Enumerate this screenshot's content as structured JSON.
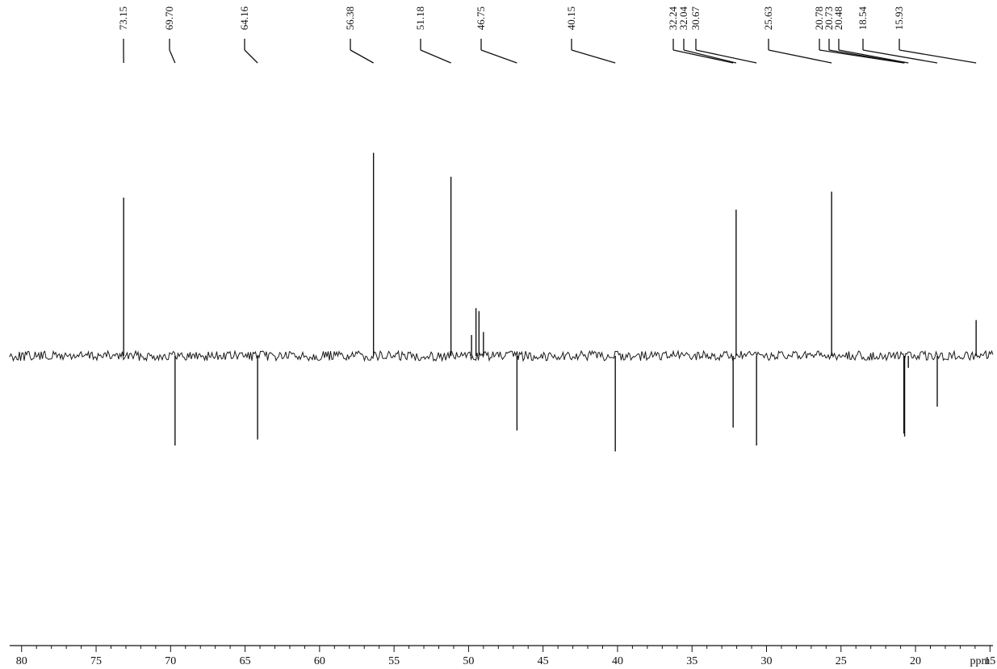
{
  "chart_data": {
    "type": "line",
    "title": "",
    "xlabel": "ppm",
    "ylabel": "",
    "xlim": [
      80.8,
      14.8
    ],
    "x_reversed": true,
    "grid": false,
    "legend": "none",
    "x_ticks": [
      "80",
      "75",
      "70",
      "65",
      "60",
      "55",
      "50",
      "45",
      "40",
      "35",
      "30",
      "25",
      "20",
      "15"
    ],
    "x_unit_label": "ppm",
    "peak_labels": [
      "73.15",
      "69.70",
      "64.16",
      "56.38",
      "51.18",
      "46.75",
      "40.15",
      "32.24",
      "32.04",
      "30.67",
      "25.63",
      "20.78",
      "20.73",
      "20.48",
      "18.54",
      "15.93"
    ],
    "peaks": [
      {
        "ppm": 73.15,
        "intensity": 0.53,
        "phase": "positive"
      },
      {
        "ppm": 69.7,
        "intensity": -0.3,
        "phase": "negative"
      },
      {
        "ppm": 64.16,
        "intensity": -0.28,
        "phase": "negative"
      },
      {
        "ppm": 56.38,
        "intensity": 0.68,
        "phase": "positive"
      },
      {
        "ppm": 51.18,
        "intensity": 0.6,
        "phase": "positive"
      },
      {
        "ppm": 49.8,
        "intensity": 0.07,
        "phase": "positive"
      },
      {
        "ppm": 49.5,
        "intensity": 0.16,
        "phase": "positive"
      },
      {
        "ppm": 49.3,
        "intensity": 0.15,
        "phase": "positive"
      },
      {
        "ppm": 49.0,
        "intensity": 0.08,
        "phase": "positive"
      },
      {
        "ppm": 46.75,
        "intensity": -0.25,
        "phase": "negative"
      },
      {
        "ppm": 40.15,
        "intensity": -0.32,
        "phase": "negative"
      },
      {
        "ppm": 32.24,
        "intensity": -0.24,
        "phase": "negative"
      },
      {
        "ppm": 32.04,
        "intensity": 0.49,
        "phase": "positive"
      },
      {
        "ppm": 30.67,
        "intensity": -0.3,
        "phase": "negative"
      },
      {
        "ppm": 25.63,
        "intensity": 0.55,
        "phase": "positive"
      },
      {
        "ppm": 20.78,
        "intensity": -0.26,
        "phase": "negative"
      },
      {
        "ppm": 20.73,
        "intensity": -0.27,
        "phase": "negative"
      },
      {
        "ppm": 20.48,
        "intensity": -0.04,
        "phase": "negative"
      },
      {
        "ppm": 18.54,
        "intensity": -0.17,
        "phase": "negative"
      },
      {
        "ppm": 15.93,
        "intensity": 0.12,
        "phase": "positive"
      }
    ]
  }
}
